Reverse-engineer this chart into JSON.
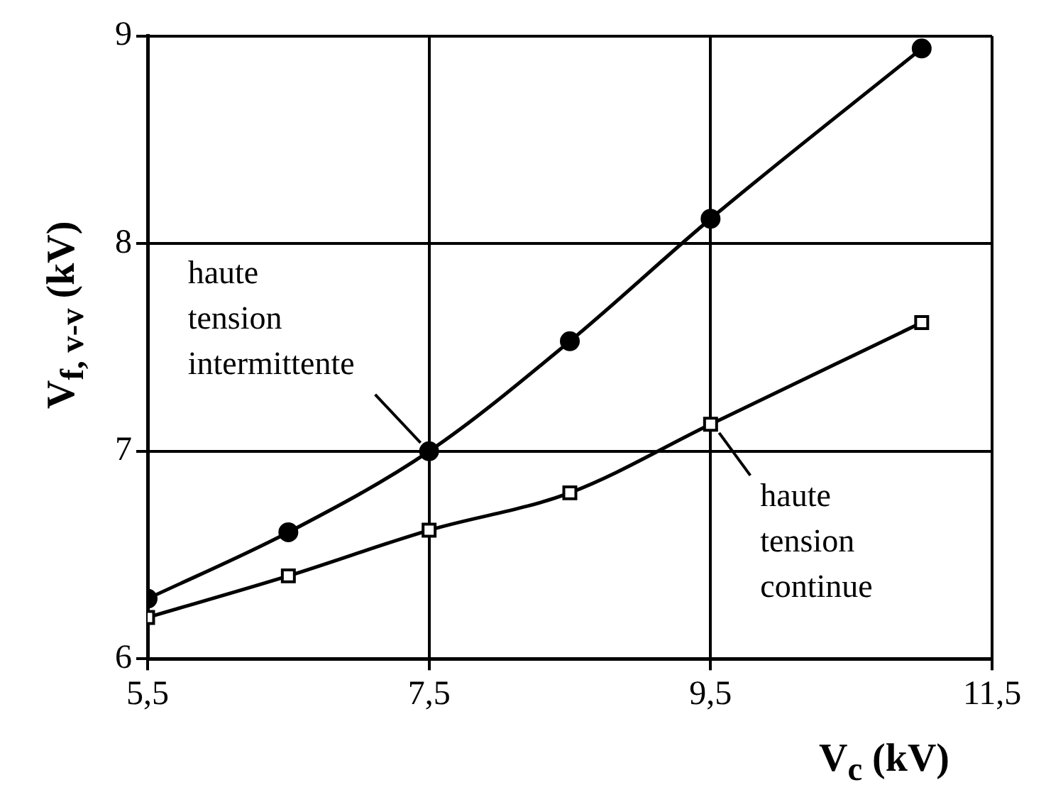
{
  "chart_data": {
    "type": "line",
    "xlabel": "V$_{c}$ (kV)",
    "ylabel": "V$_{f, v-v}$ (kV)",
    "x": [
      5.5,
      6.5,
      7.5,
      8.5,
      9.5,
      11.0
    ],
    "series": [
      {
        "color": "#000000",
        "marker": "circle",
        "values": [
          6.29,
          6.61,
          7.0,
          7.53,
          8.12,
          8.94
        ]
      },
      {
        "color": "#000000",
        "marker": "square",
        "values": [
          6.2,
          6.4,
          6.62,
          6.8,
          7.13,
          7.62
        ]
      }
    ],
    "xlim": [
      5.5,
      11.5
    ],
    "xticks": [
      {
        "value": 5.5,
        "label": "5,5"
      },
      {
        "value": 7.5,
        "label": "7,5"
      },
      {
        "value": 9.5,
        "label": "9,5"
      },
      {
        "value": 11.5,
        "label": "11,5"
      }
    ],
    "ylim": [
      6,
      9
    ],
    "yticks": [
      6,
      7,
      8,
      9
    ],
    "grid": true,
    "legend": false,
    "annotations": [
      {
        "text": "haute tension intermittente",
        "x": 7.5,
        "y": 7.0
      },
      {
        "text": "haute tension continue",
        "x": 9.5,
        "y": 7.13
      }
    ]
  }
}
